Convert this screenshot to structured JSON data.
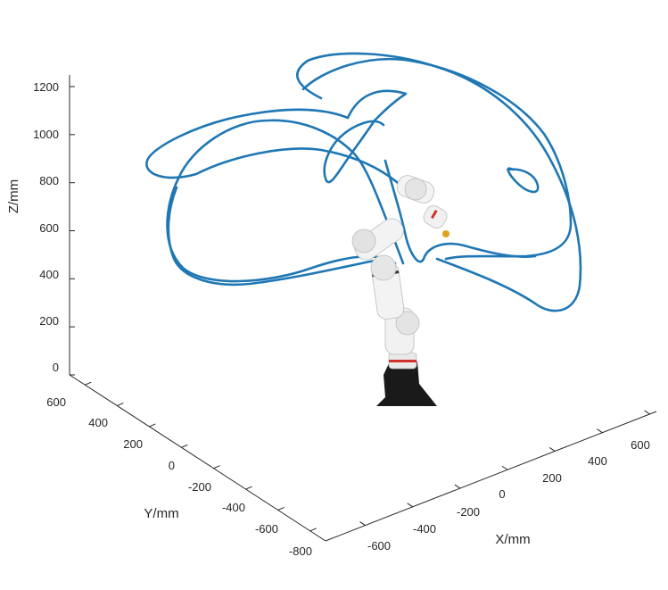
{
  "chart_data": {
    "type": "line",
    "projection": "3d",
    "title": "",
    "xlabel": "X/mm",
    "ylabel": "Y/mm",
    "zlabel": "Z/mm",
    "xlim": [
      -700,
      750
    ],
    "ylim": [
      -800,
      650
    ],
    "zlim": [
      0,
      1250
    ],
    "x_ticks": [
      "-600",
      "-400",
      "-200",
      "0",
      "200",
      "400",
      "600"
    ],
    "y_ticks": [
      "600",
      "400",
      "200",
      "0",
      "-200",
      "-400",
      "-600",
      "-800"
    ],
    "z_ticks": [
      "0",
      "200",
      "400",
      "600",
      "800",
      "1000",
      "1200"
    ],
    "grid": false,
    "legend": "none",
    "series": [
      {
        "color": "#1f77b4",
        "style": "continuous spatial end-effector trajectory forming several large overlapping loops around the robot arm",
        "z_range_mm": [
          300,
          1230
        ]
      }
    ],
    "annotations": [
      {
        "type": "image",
        "description": "white collaborative robot arm with black base and red accent ring"
      }
    ]
  }
}
